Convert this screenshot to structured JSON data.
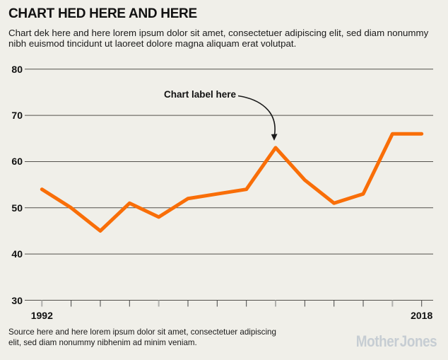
{
  "header": {
    "title": "CHART HED HERE AND HERE",
    "dek": "Chart dek here and here lorem ipsum dolor sit amet, consectetuer adipiscing elit, sed diam nonummy nibh euismod tincidunt ut laoreet dolore magna aliquam erat volutpat."
  },
  "footer": {
    "source": "Source here and here lorem ipsum dolor sit amet, consectetuer adipiscing elit, sed diam nonummy nibhenim ad minim veniam.",
    "logo": "Mother Jones"
  },
  "colors": {
    "background": "#F0EFE9",
    "line": "#F96E08",
    "grid": "#54524D",
    "tick_minor": "#454545",
    "tick_major": "#B0B0AD",
    "text": "#111111",
    "logo": "#C6CDD3"
  },
  "chart_data": {
    "type": "line",
    "title": "CHART HED HERE AND HERE",
    "x": [
      1992,
      1994,
      1996,
      1998,
      2000,
      2002,
      2004,
      2006,
      2008,
      2010,
      2012,
      2014,
      2016,
      2018
    ],
    "series": [
      {
        "name": "main",
        "values": [
          54,
          50,
          45,
          51,
          48,
          52,
          53,
          54,
          63,
          56,
          51,
          53,
          66,
          66
        ]
      }
    ],
    "ylim": [
      30,
      80
    ],
    "yticks": [
      30,
      40,
      50,
      60,
      70,
      80
    ],
    "xlim": [
      1992,
      2018
    ],
    "xtick_step_years": 2,
    "labeled_xticks": [
      1992,
      2018
    ],
    "major_xticks": [
      1992,
      2000,
      2008,
      2016
    ],
    "grid": "horizontal gridlines on",
    "legend": "none",
    "annotation": {
      "text": "Chart label here",
      "target_x": 2008,
      "target_y": 63
    }
  }
}
